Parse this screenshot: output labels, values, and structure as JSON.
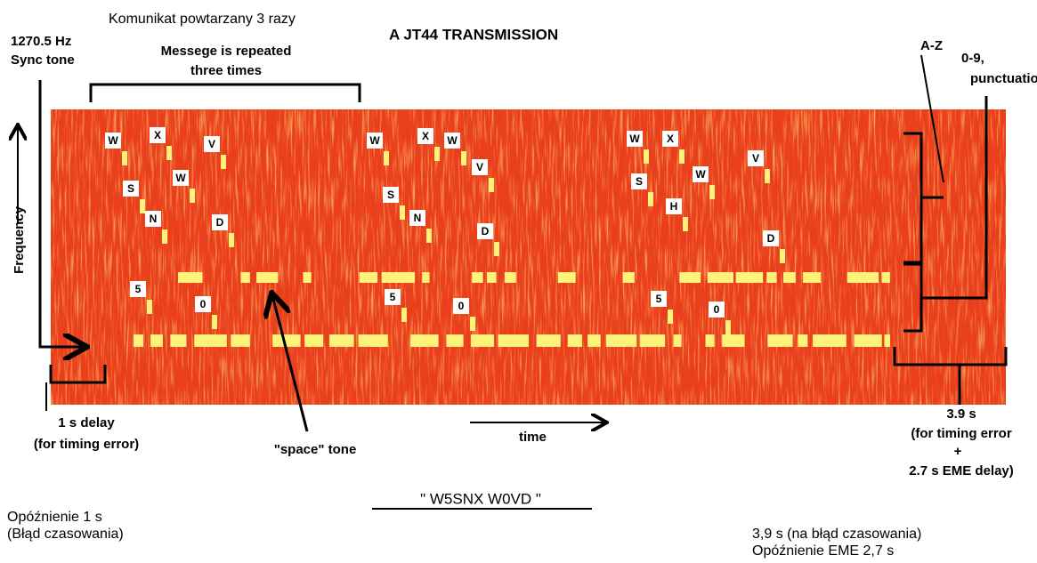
{
  "header": {
    "title": "A JT44 TRANSMISSION",
    "polish_note": "Komunikat powtarzany 3 razy"
  },
  "labels": {
    "sync_tone": [
      "1270.5 Hz",
      "Sync tone"
    ],
    "repeat": [
      "Messege is repeated",
      "three times"
    ],
    "a_z": "A-Z",
    "digits": [
      "0-9,",
      "punctuation"
    ],
    "frequency": "Frequency",
    "time": "time",
    "delay": [
      "1 s delay",
      "(for timing error)"
    ],
    "space_tone": "\"space\" tone",
    "message": "\" W5SNX W0VD \"",
    "end_delay": [
      "3.9 s",
      "(for timing error",
      "+",
      "2.7 s EME delay)"
    ],
    "polish_delay": [
      "Opóźnienie 1 s",
      "(Błąd czasowania)"
    ],
    "polish_end": [
      "3,9 s (na błąd czasowania)",
      "Opóźnienie EME 2,7 s"
    ]
  },
  "letters": [
    "W",
    "X",
    "V",
    "S",
    "W",
    "N",
    "D",
    "5",
    "0",
    "W",
    "X",
    "W",
    "V",
    "S",
    "N",
    "D",
    "5",
    "0",
    "W",
    "X",
    "S",
    "W",
    "V",
    "H",
    "D",
    "5",
    "0"
  ]
}
